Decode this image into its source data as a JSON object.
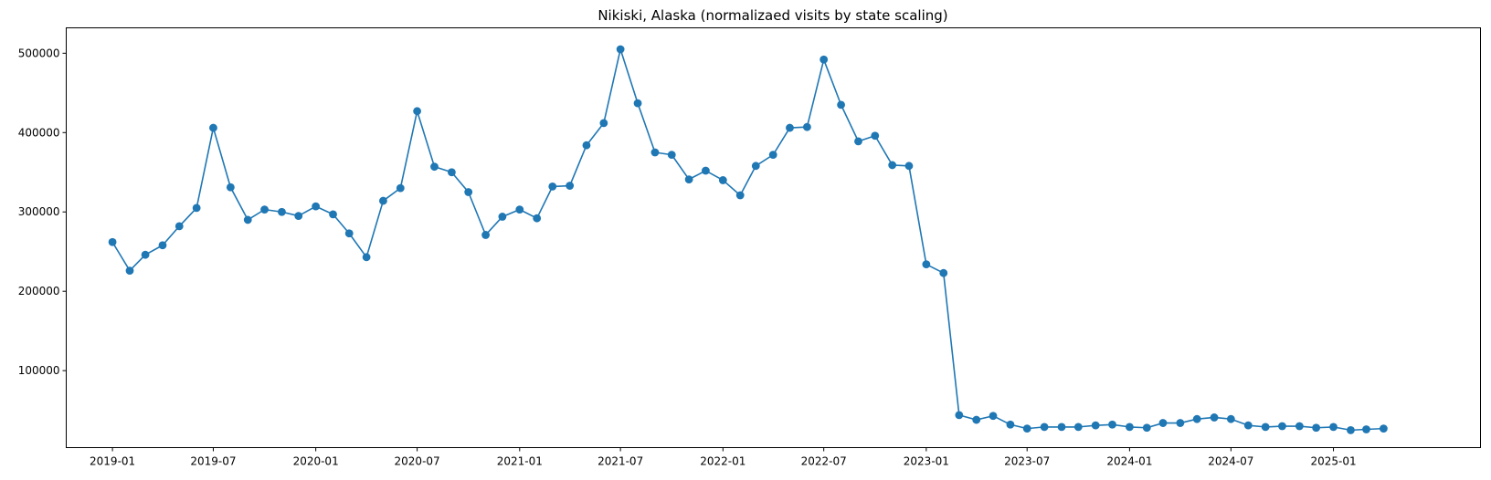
{
  "chart_data": {
    "type": "line",
    "title": "Nikiski, Alaska (normalizaed visits by state scaling)",
    "xlabel": "",
    "ylabel": "",
    "x_ticks": [
      "2019-01",
      "2019-07",
      "2020-01",
      "2020-07",
      "2021-01",
      "2021-07",
      "2022-01",
      "2022-07",
      "2023-01",
      "2023-07",
      "2024-01",
      "2024-07",
      "2025-01"
    ],
    "y_ticks": [
      100000,
      200000,
      300000,
      400000,
      500000
    ],
    "y_tick_labels": [
      "100000",
      "200000",
      "300000",
      "400000",
      "500000"
    ],
    "xlim": [
      "2018-10-10",
      "2025-09-22"
    ],
    "ylim": [
      3000,
      532000
    ],
    "grid": false,
    "marker": "circle",
    "color": "#1f77b4",
    "series": [
      {
        "x": [
          "2019-01",
          "2019-02",
          "2019-03",
          "2019-04",
          "2019-05",
          "2019-06",
          "2019-07",
          "2019-08",
          "2019-09",
          "2019-10",
          "2019-11",
          "2019-12",
          "2020-01",
          "2020-02",
          "2020-03",
          "2020-04",
          "2020-05",
          "2020-06",
          "2020-07",
          "2020-08",
          "2020-09",
          "2020-10",
          "2020-11",
          "2020-12",
          "2021-01",
          "2021-02",
          "2021-03",
          "2021-04",
          "2021-05",
          "2021-06",
          "2021-07",
          "2021-08",
          "2021-09",
          "2021-10",
          "2021-11",
          "2021-12",
          "2022-01",
          "2022-02",
          "2022-03",
          "2022-04",
          "2022-05",
          "2022-06",
          "2022-07",
          "2022-08",
          "2022-09",
          "2022-10",
          "2022-11",
          "2022-12",
          "2023-01",
          "2023-02",
          "2023-03",
          "2023-04",
          "2023-05",
          "2023-06",
          "2023-07",
          "2023-08",
          "2023-09",
          "2023-10",
          "2023-11",
          "2023-12",
          "2024-01",
          "2024-02",
          "2024-03",
          "2024-04",
          "2024-05",
          "2024-06",
          "2024-07",
          "2024-08",
          "2024-09",
          "2024-10",
          "2024-11",
          "2024-12",
          "2025-01",
          "2025-02",
          "2025-03",
          "2025-04"
        ],
        "values": [
          262000,
          226000,
          246000,
          258000,
          282000,
          305000,
          406000,
          331000,
          290000,
          303000,
          300000,
          295000,
          307000,
          297000,
          273000,
          243000,
          314000,
          330000,
          427000,
          357000,
          350000,
          325000,
          271000,
          294000,
          303000,
          292000,
          332000,
          333000,
          384000,
          412000,
          505000,
          437000,
          375000,
          372000,
          341000,
          352000,
          340000,
          321000,
          358000,
          372000,
          406000,
          407000,
          492000,
          435000,
          389000,
          396000,
          359000,
          358000,
          234000,
          223000,
          44000,
          38000,
          43000,
          32000,
          27000,
          29000,
          29000,
          29000,
          31000,
          32000,
          29000,
          28000,
          34000,
          34000,
          39000,
          41000,
          39000,
          31000,
          29000,
          30000,
          30000,
          28000,
          29000,
          25000,
          26000,
          27000
        ]
      }
    ]
  }
}
